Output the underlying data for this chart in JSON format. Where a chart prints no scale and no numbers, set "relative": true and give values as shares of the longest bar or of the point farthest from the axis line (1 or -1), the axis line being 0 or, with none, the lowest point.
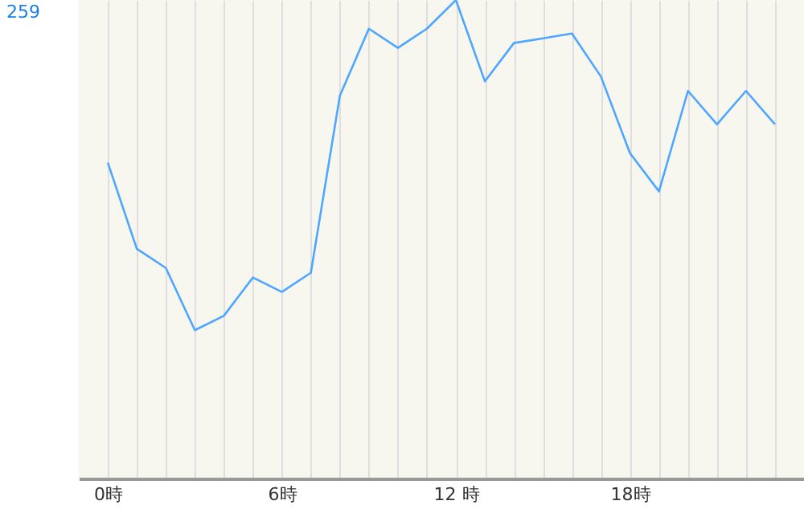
{
  "chart_data": {
    "type": "line",
    "relative": true,
    "categories": [
      "0時",
      null,
      null,
      null,
      null,
      null,
      "6時",
      null,
      null,
      null,
      null,
      null,
      "12 時",
      null,
      null,
      null,
      null,
      null,
      "18時",
      null,
      null,
      null,
      null,
      null
    ],
    "series": [
      {
        "color": "#4da6ff",
        "values": [
          0.66,
          0.48,
          0.44,
          0.31,
          0.34,
          0.42,
          0.39,
          0.43,
          0.8,
          0.94,
          0.9,
          0.94,
          1,
          0.83,
          0.91,
          0.92,
          0.93,
          0.84,
          0.68,
          0.6,
          0.81,
          0.74,
          0.81,
          0.74
        ]
      }
    ],
    "annotations": [
      "259"
    ],
    "grid": "x",
    "marker": "none",
    "line_style": "solid"
  }
}
